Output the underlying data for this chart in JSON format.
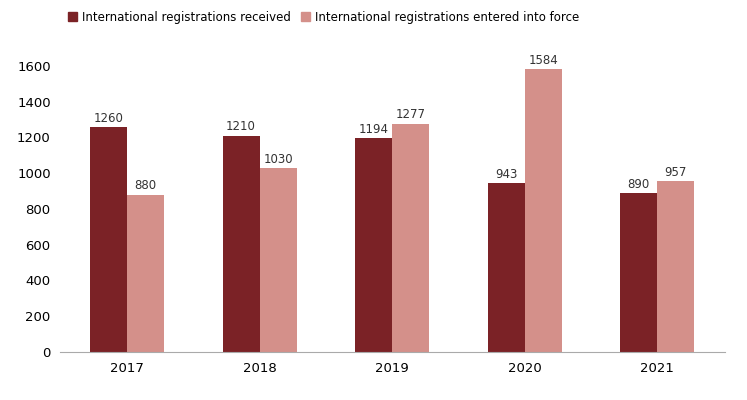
{
  "years": [
    "2017",
    "2018",
    "2019",
    "2020",
    "2021"
  ],
  "received": [
    1260,
    1210,
    1194,
    943,
    890
  ],
  "entered": [
    880,
    1030,
    1277,
    1584,
    957
  ],
  "color_received": "#7B2226",
  "color_entered": "#D4908A",
  "legend_received": "International registrations received",
  "legend_entered": "International registrations entered into force",
  "ylim": [
    0,
    1700
  ],
  "yticks": [
    0,
    200,
    400,
    600,
    800,
    1000,
    1200,
    1400,
    1600
  ],
  "bar_width": 0.28,
  "label_fontsize": 8.5,
  "legend_fontsize": 8.5,
  "tick_fontsize": 9.5,
  "background_color": "#ffffff"
}
